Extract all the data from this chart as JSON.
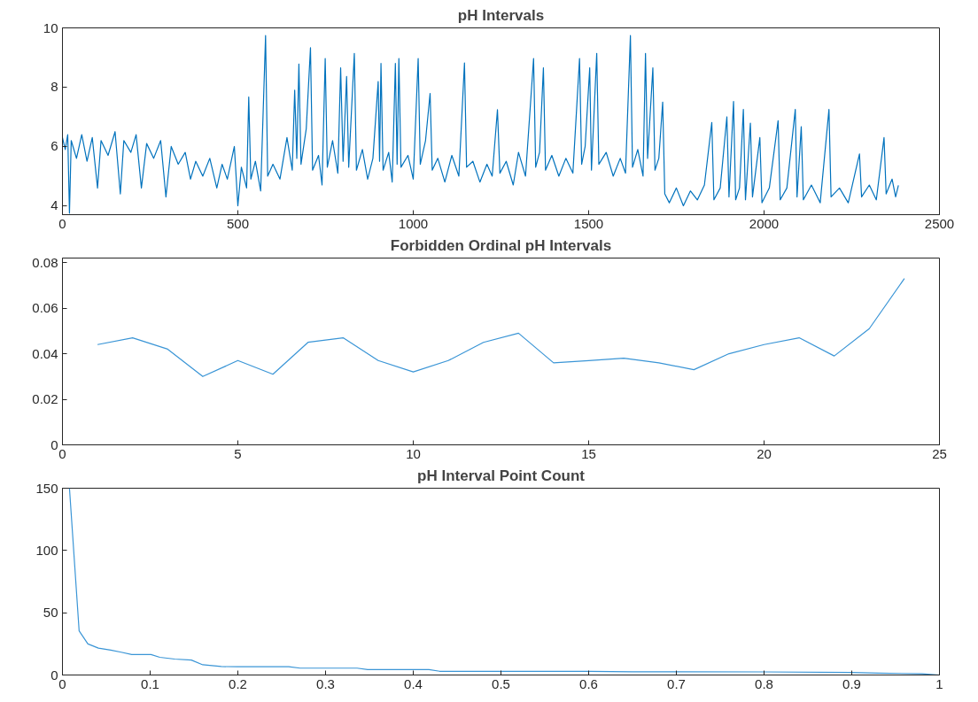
{
  "chart_data": [
    {
      "type": "line",
      "title": "pH Intervals",
      "xlim": [
        0,
        2500
      ],
      "xticks": [
        0,
        500,
        1000,
        1500,
        2000,
        2500
      ],
      "ylim": [
        3.7,
        10
      ],
      "yticks": [
        4,
        6,
        8,
        10
      ],
      "grid": false,
      "series": [
        {
          "color": "#0072bd",
          "x": [
            0,
            8,
            15,
            20,
            25,
            40,
            55,
            70,
            85,
            100,
            110,
            130,
            150,
            165,
            175,
            195,
            210,
            225,
            240,
            260,
            280,
            295,
            310,
            330,
            350,
            365,
            380,
            400,
            420,
            440,
            455,
            470,
            490,
            500,
            510,
            525,
            531,
            537,
            550,
            565,
            579,
            585,
            600,
            620,
            640,
            655,
            662,
            668,
            674,
            680,
            695,
            707,
            713,
            730,
            740,
            749,
            755,
            770,
            785,
            793,
            800,
            810,
            816,
            832,
            838,
            855,
            870,
            885,
            900,
            904,
            908,
            914,
            930,
            940,
            949,
            954,
            959,
            965,
            985,
            1000,
            1014,
            1020,
            1035,
            1048,
            1054,
            1070,
            1090,
            1110,
            1130,
            1146,
            1152,
            1170,
            1190,
            1210,
            1225,
            1240,
            1247,
            1265,
            1285,
            1300,
            1320,
            1343,
            1349,
            1360,
            1371,
            1377,
            1395,
            1415,
            1435,
            1455,
            1474,
            1480,
            1490,
            1503,
            1508,
            1523,
            1529,
            1550,
            1570,
            1590,
            1605,
            1619,
            1625,
            1640,
            1655,
            1662,
            1668,
            1683,
            1689,
            1700,
            1711,
            1717,
            1730,
            1750,
            1770,
            1790,
            1810,
            1830,
            1851,
            1857,
            1875,
            1894,
            1900,
            1913,
            1919,
            1930,
            1941,
            1947,
            1961,
            1967,
            1988,
            1994,
            2015,
            2040,
            2046,
            2065,
            2089,
            2094,
            2106,
            2112,
            2135,
            2160,
            2185,
            2191,
            2215,
            2240,
            2272,
            2278,
            2300,
            2320,
            2342,
            2348,
            2365,
            2375,
            2383
          ],
          "values": [
            6.3,
            5.9,
            6.4,
            3.75,
            6.2,
            5.6,
            6.4,
            5.5,
            6.3,
            4.6,
            6.2,
            5.7,
            6.5,
            4.4,
            6.2,
            5.8,
            6.4,
            4.6,
            6.1,
            5.6,
            6.2,
            4.3,
            6.0,
            5.4,
            5.8,
            4.9,
            5.5,
            5.0,
            5.6,
            4.6,
            5.4,
            4.9,
            6.0,
            4.0,
            5.3,
            4.6,
            7.67,
            4.9,
            5.5,
            4.5,
            9.74,
            5.0,
            5.4,
            4.9,
            6.3,
            5.2,
            7.9,
            5.6,
            8.78,
            5.4,
            6.6,
            9.33,
            5.2,
            5.7,
            4.7,
            8.97,
            5.3,
            6.2,
            5.1,
            8.65,
            5.5,
            8.36,
            5.3,
            9.14,
            5.2,
            5.9,
            4.9,
            5.6,
            8.19,
            5.5,
            8.8,
            5.2,
            5.8,
            4.8,
            8.8,
            5.4,
            8.97,
            5.3,
            5.7,
            4.9,
            8.97,
            5.4,
            6.2,
            7.79,
            5.2,
            5.6,
            4.8,
            5.7,
            5.0,
            8.82,
            5.3,
            5.5,
            4.8,
            5.4,
            5.0,
            7.24,
            5.1,
            5.5,
            4.7,
            5.8,
            5.0,
            8.97,
            5.3,
            5.8,
            8.65,
            5.2,
            5.7,
            5.0,
            5.6,
            5.1,
            8.97,
            5.4,
            6.0,
            8.65,
            5.2,
            9.14,
            5.4,
            5.8,
            5.0,
            5.6,
            5.1,
            9.74,
            5.3,
            5.9,
            5.0,
            9.14,
            5.6,
            8.65,
            5.2,
            5.6,
            7.5,
            4.4,
            4.1,
            4.6,
            4.0,
            4.5,
            4.2,
            4.7,
            6.81,
            4.2,
            4.6,
            7.0,
            4.3,
            7.52,
            4.2,
            4.6,
            7.25,
            4.2,
            6.79,
            4.3,
            6.3,
            4.1,
            4.6,
            6.87,
            4.2,
            4.6,
            7.25,
            4.3,
            6.67,
            4.2,
            4.7,
            4.1,
            7.25,
            4.3,
            4.6,
            4.1,
            5.75,
            4.3,
            4.7,
            4.2,
            6.3,
            4.4,
            4.9,
            4.3,
            4.69
          ]
        }
      ]
    },
    {
      "type": "line",
      "title": "Forbidden Ordinal pH Intervals",
      "xlim": [
        0,
        25
      ],
      "xticks": [
        0,
        5,
        10,
        15,
        20,
        25
      ],
      "ylim": [
        0,
        0.082
      ],
      "yticks": [
        0,
        0.02,
        0.04,
        0.06,
        0.08
      ],
      "grid": false,
      "series": [
        {
          "color": "#3a95d6",
          "x": [
            1,
            2,
            3,
            4,
            5,
            6,
            7,
            8,
            9,
            10,
            11,
            12,
            13,
            14,
            15,
            16,
            17,
            18,
            19,
            20,
            21,
            22,
            23,
            24
          ],
          "values": [
            0.044,
            0.047,
            0.042,
            0.03,
            0.037,
            0.031,
            0.045,
            0.047,
            0.037,
            0.032,
            0.037,
            0.045,
            0.049,
            0.036,
            0.037,
            0.038,
            0.036,
            0.033,
            0.04,
            0.044,
            0.047,
            0.039,
            0.051,
            0.073
          ]
        }
      ]
    },
    {
      "type": "line",
      "title": "pH Interval Point Count",
      "xlim": [
        0,
        1
      ],
      "xticks": [
        0,
        0.1,
        0.2,
        0.3,
        0.4,
        0.5,
        0.6,
        0.7,
        0.8,
        0.9,
        1
      ],
      "ylim": [
        0,
        150
      ],
      "yticks": [
        0,
        50,
        100,
        150
      ],
      "grid": false,
      "series": [
        {
          "color": "#3a95d6",
          "x": [
            0.008,
            0.019,
            0.029,
            0.041,
            0.055,
            0.067,
            0.079,
            0.101,
            0.111,
            0.128,
            0.147,
            0.16,
            0.181,
            0.2,
            0.258,
            0.271,
            0.336,
            0.348,
            0.418,
            0.43,
            0.507,
            0.6,
            0.65,
            0.8,
            0.9,
            0.93,
            0.98,
            1.0
          ],
          "values": [
            150,
            35.5,
            25,
            21.6,
            20,
            18.3,
            16.4,
            16.4,
            14.2,
            12.8,
            12,
            8.2,
            6.8,
            6.6,
            6.6,
            5.5,
            5.5,
            4.4,
            4.4,
            3,
            3,
            3,
            2.6,
            2.5,
            2,
            1.5,
            1,
            0
          ]
        }
      ]
    }
  ]
}
